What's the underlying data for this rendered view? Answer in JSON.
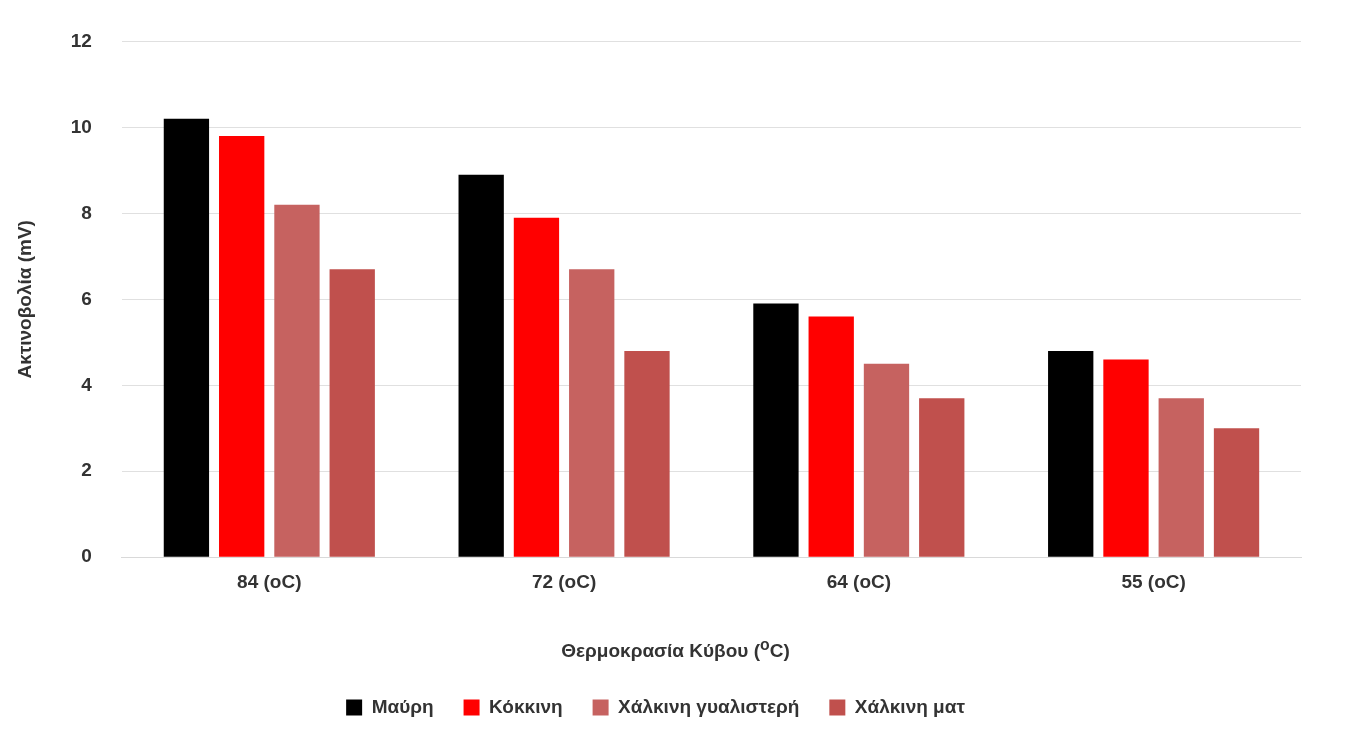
{
  "chart_data": {
    "type": "bar",
    "xlabel": "Θερμοκρασία Κύβου ($^{o}$C)",
    "ylabel": "Ακτινοβολία (mV)",
    "categories": [
      "84 (oC)",
      "72 (oC)",
      "64 (oC)",
      "55 (oC)"
    ],
    "series": [
      {
        "name": "Μαύρη",
        "color": "#000000",
        "values": [
          10.2,
          8.9,
          5.9,
          4.8
        ]
      },
      {
        "name": "Κόκκινη",
        "color": "#ff0000",
        "values": [
          9.8,
          7.9,
          5.6,
          4.6
        ]
      },
      {
        "name": "Χάλκινη γυαλιστερή",
        "color": "#c66260",
        "values": [
          8.2,
          6.7,
          4.5,
          3.7
        ]
      },
      {
        "name": "Χάλκινη ματ",
        "color": "#c0504d",
        "values": [
          6.7,
          4.8,
          3.7,
          3.0
        ]
      }
    ],
    "ylim": [
      0,
      12
    ],
    "yticks": [
      0,
      2,
      4,
      6,
      8,
      10,
      12
    ],
    "grid": "y",
    "legend": "bottom"
  }
}
